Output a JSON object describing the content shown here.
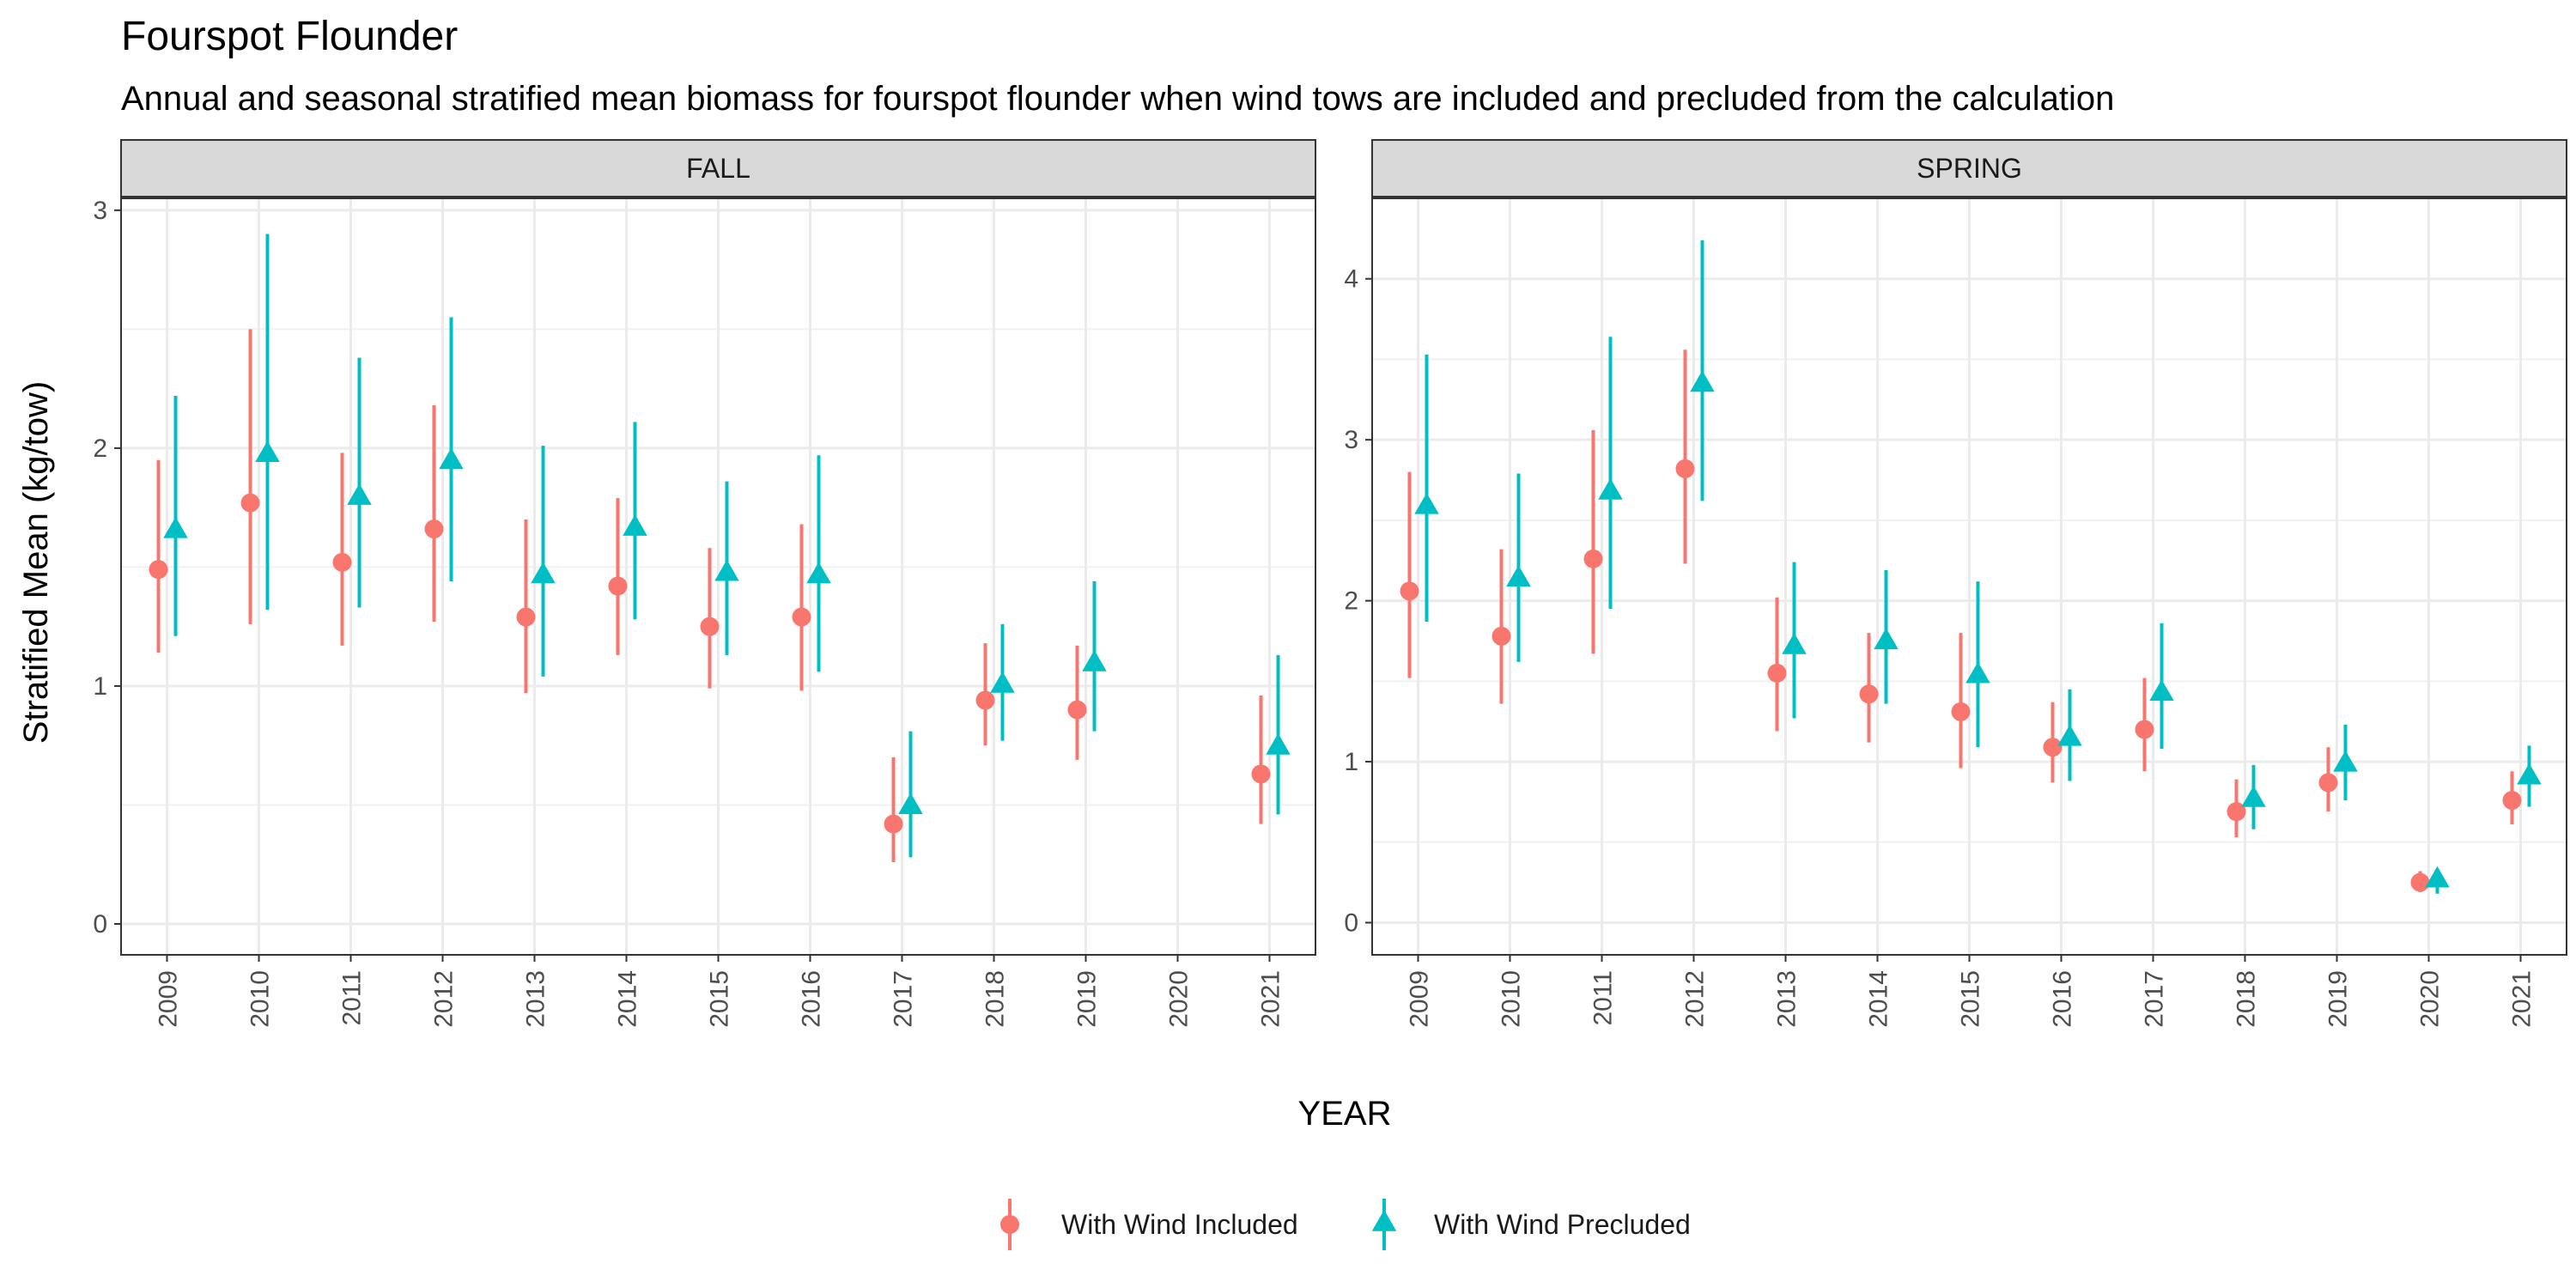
{
  "chart_data": {
    "type": "scatter",
    "title": "Fourspot Flounder",
    "subtitle": "Annual and seasonal stratified mean biomass for fourspot flounder when wind tows are included and precluded from the calculation",
    "xlabel": "YEAR",
    "ylabel": "Stratified Mean (kg/tow)",
    "categories": [
      "2009",
      "2010",
      "2011",
      "2012",
      "2013",
      "2014",
      "2015",
      "2016",
      "2017",
      "2018",
      "2019",
      "2020",
      "2021"
    ],
    "legend": {
      "placement": "bottom"
    },
    "series_styles": [
      {
        "name": "With Wind Included",
        "color": "#F8766D",
        "shape": "circle"
      },
      {
        "name": "With Wind Precluded",
        "color": "#00BFC4",
        "shape": "triangle"
      }
    ],
    "panels": [
      {
        "label": "FALL",
        "ylim": [
          -0.13,
          3.05
        ],
        "yticks": [
          0,
          1,
          2,
          3
        ],
        "series": [
          {
            "name": "With Wind Included",
            "points": [
              {
                "x": "2009",
                "y": 1.49,
                "lo": 1.14,
                "hi": 1.95
              },
              {
                "x": "2010",
                "y": 1.77,
                "lo": 1.26,
                "hi": 2.5
              },
              {
                "x": "2011",
                "y": 1.52,
                "lo": 1.17,
                "hi": 1.98
              },
              {
                "x": "2012",
                "y": 1.66,
                "lo": 1.27,
                "hi": 2.18
              },
              {
                "x": "2013",
                "y": 1.29,
                "lo": 0.97,
                "hi": 1.7
              },
              {
                "x": "2014",
                "y": 1.42,
                "lo": 1.13,
                "hi": 1.79
              },
              {
                "x": "2015",
                "y": 1.25,
                "lo": 0.99,
                "hi": 1.58
              },
              {
                "x": "2016",
                "y": 1.29,
                "lo": 0.98,
                "hi": 1.68
              },
              {
                "x": "2017",
                "y": 0.42,
                "lo": 0.26,
                "hi": 0.7
              },
              {
                "x": "2018",
                "y": 0.94,
                "lo": 0.75,
                "hi": 1.18
              },
              {
                "x": "2019",
                "y": 0.9,
                "lo": 0.69,
                "hi": 1.17
              },
              {
                "x": "2021",
                "y": 0.63,
                "lo": 0.42,
                "hi": 0.96
              }
            ]
          },
          {
            "name": "With Wind Precluded",
            "points": [
              {
                "x": "2009",
                "y": 1.65,
                "lo": 1.21,
                "hi": 2.22
              },
              {
                "x": "2010",
                "y": 1.97,
                "lo": 1.32,
                "hi": 2.9
              },
              {
                "x": "2011",
                "y": 1.79,
                "lo": 1.33,
                "hi": 2.38
              },
              {
                "x": "2012",
                "y": 1.94,
                "lo": 1.44,
                "hi": 2.55
              },
              {
                "x": "2013",
                "y": 1.46,
                "lo": 1.04,
                "hi": 2.01
              },
              {
                "x": "2014",
                "y": 1.66,
                "lo": 1.28,
                "hi": 2.11
              },
              {
                "x": "2015",
                "y": 1.47,
                "lo": 1.13,
                "hi": 1.86
              },
              {
                "x": "2016",
                "y": 1.46,
                "lo": 1.06,
                "hi": 1.97
              },
              {
                "x": "2017",
                "y": 0.49,
                "lo": 0.28,
                "hi": 0.81
              },
              {
                "x": "2018",
                "y": 1.0,
                "lo": 0.77,
                "hi": 1.26
              },
              {
                "x": "2019",
                "y": 1.09,
                "lo": 0.81,
                "hi": 1.44
              },
              {
                "x": "2021",
                "y": 0.74,
                "lo": 0.46,
                "hi": 1.13
              }
            ]
          }
        ]
      },
      {
        "label": "SPRING",
        "ylim": [
          -0.2,
          4.5
        ],
        "yticks": [
          0,
          1,
          2,
          3,
          4
        ],
        "series": [
          {
            "name": "With Wind Included",
            "points": [
              {
                "x": "2009",
                "y": 2.06,
                "lo": 1.52,
                "hi": 2.8
              },
              {
                "x": "2010",
                "y": 1.78,
                "lo": 1.36,
                "hi": 2.32
              },
              {
                "x": "2011",
                "y": 2.26,
                "lo": 1.67,
                "hi": 3.06
              },
              {
                "x": "2012",
                "y": 2.82,
                "lo": 2.23,
                "hi": 3.56
              },
              {
                "x": "2013",
                "y": 1.55,
                "lo": 1.19,
                "hi": 2.02
              },
              {
                "x": "2014",
                "y": 1.42,
                "lo": 1.12,
                "hi": 1.8
              },
              {
                "x": "2015",
                "y": 1.31,
                "lo": 0.96,
                "hi": 1.8
              },
              {
                "x": "2016",
                "y": 1.09,
                "lo": 0.87,
                "hi": 1.37
              },
              {
                "x": "2017",
                "y": 1.2,
                "lo": 0.94,
                "hi": 1.52
              },
              {
                "x": "2018",
                "y": 0.69,
                "lo": 0.53,
                "hi": 0.89
              },
              {
                "x": "2019",
                "y": 0.87,
                "lo": 0.69,
                "hi": 1.09
              },
              {
                "x": "2020",
                "y": 0.25,
                "lo": 0.19,
                "hi": 0.32
              },
              {
                "x": "2021",
                "y": 0.76,
                "lo": 0.61,
                "hi": 0.94
              }
            ]
          },
          {
            "name": "With Wind Precluded",
            "points": [
              {
                "x": "2009",
                "y": 2.58,
                "lo": 1.87,
                "hi": 3.53
              },
              {
                "x": "2010",
                "y": 2.13,
                "lo": 1.62,
                "hi": 2.79
              },
              {
                "x": "2011",
                "y": 2.67,
                "lo": 1.95,
                "hi": 3.64
              },
              {
                "x": "2012",
                "y": 3.34,
                "lo": 2.62,
                "hi": 4.24
              },
              {
                "x": "2013",
                "y": 1.71,
                "lo": 1.27,
                "hi": 2.24
              },
              {
                "x": "2014",
                "y": 1.74,
                "lo": 1.36,
                "hi": 2.19
              },
              {
                "x": "2015",
                "y": 1.53,
                "lo": 1.09,
                "hi": 2.12
              },
              {
                "x": "2016",
                "y": 1.14,
                "lo": 0.88,
                "hi": 1.45
              },
              {
                "x": "2017",
                "y": 1.42,
                "lo": 1.08,
                "hi": 1.86
              },
              {
                "x": "2018",
                "y": 0.76,
                "lo": 0.58,
                "hi": 0.98
              },
              {
                "x": "2019",
                "y": 0.98,
                "lo": 0.76,
                "hi": 1.23
              },
              {
                "x": "2020",
                "y": 0.26,
                "lo": 0.18,
                "hi": 0.33
              },
              {
                "x": "2021",
                "y": 0.9,
                "lo": 0.72,
                "hi": 1.1
              }
            ]
          }
        ]
      }
    ]
  }
}
